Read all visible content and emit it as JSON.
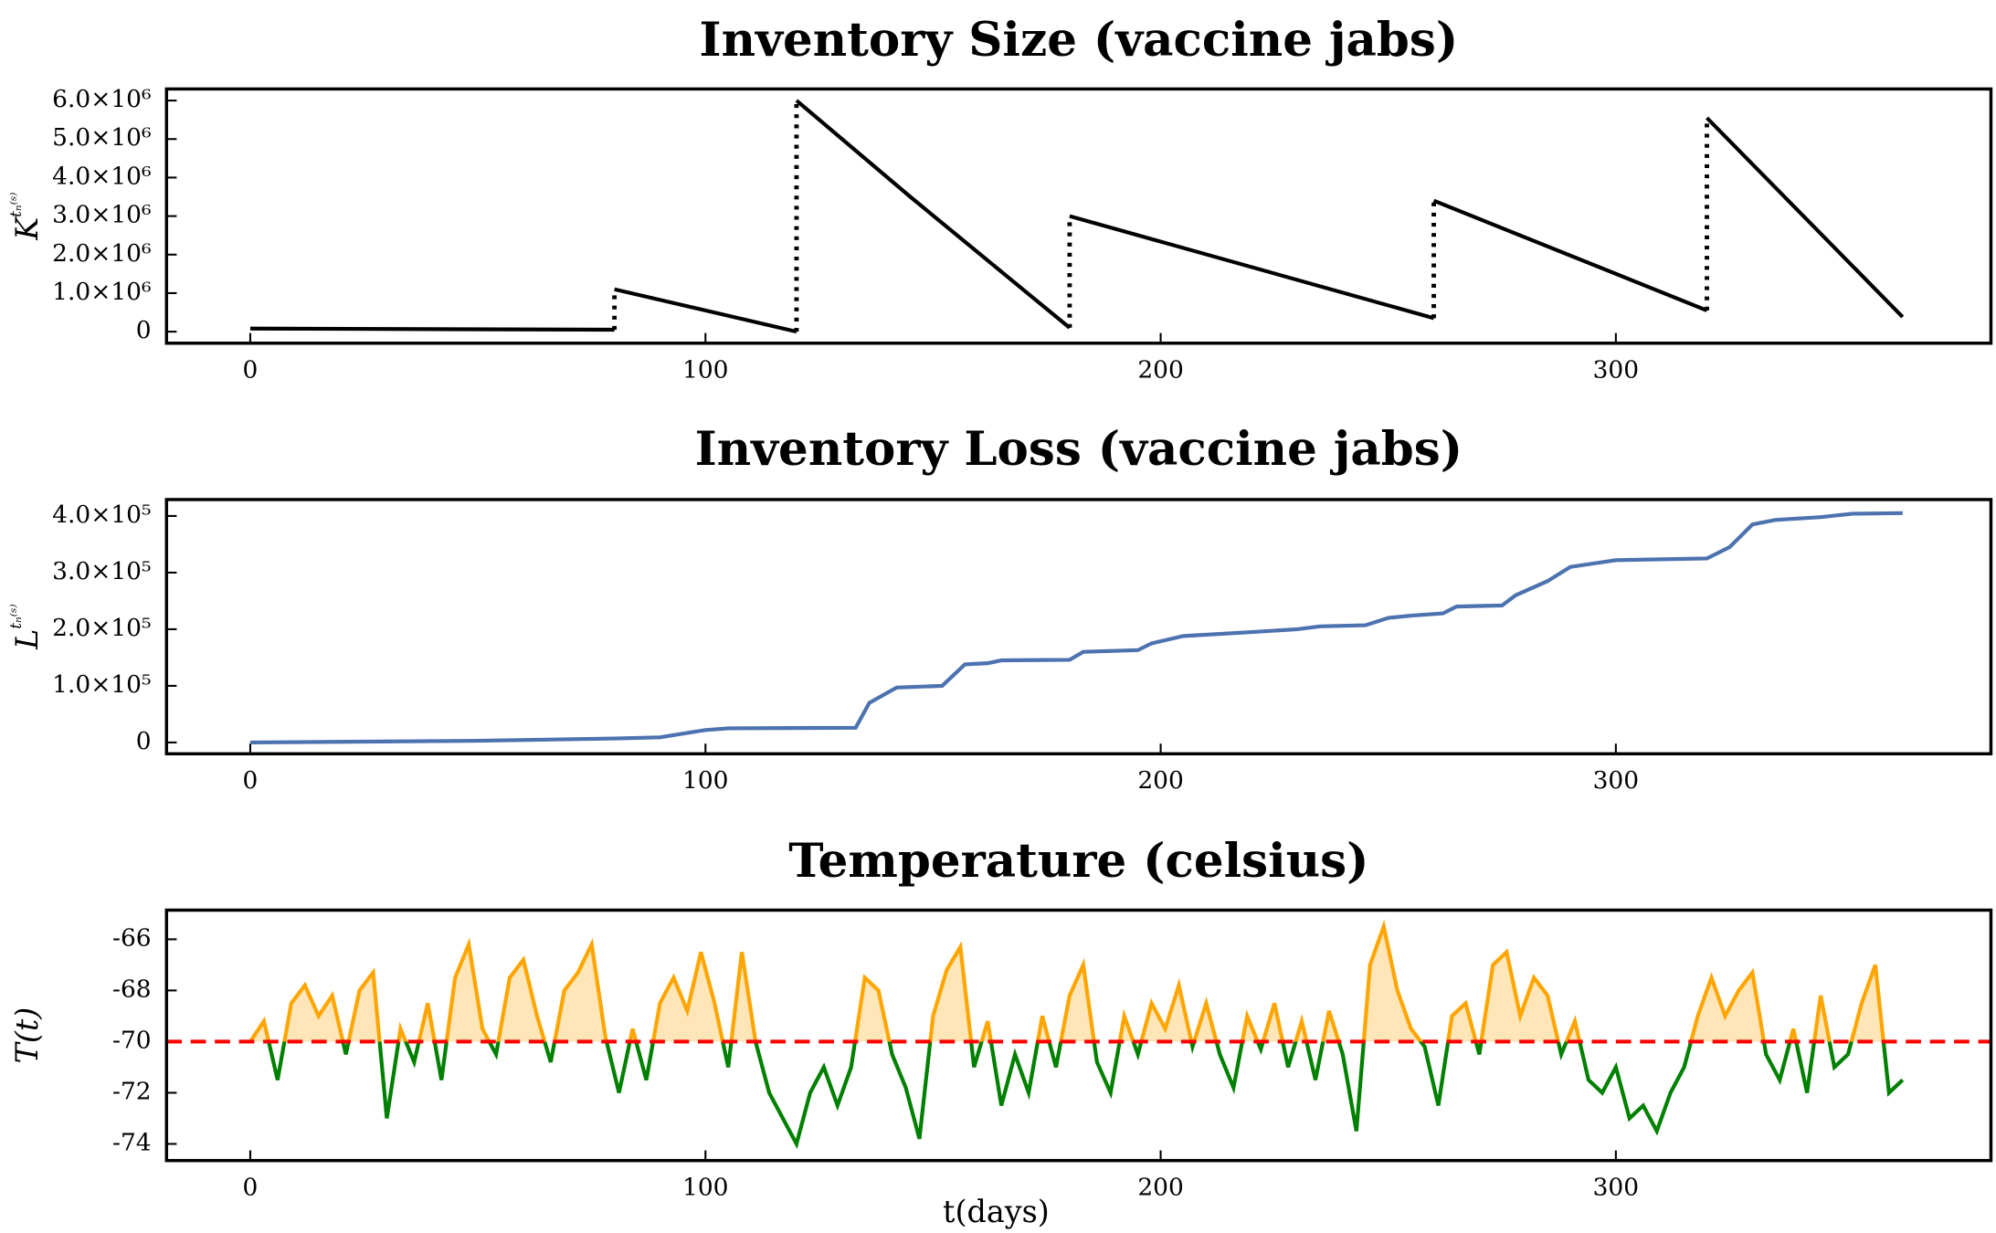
{
  "chart_data": [
    {
      "type": "line",
      "title": "Inventory Size (vaccine jabs)",
      "ylabel": {
        "base": "K",
        "sup": "tₙ⁽ˢ⁾"
      },
      "color": "#000000",
      "x": [
        0,
        80,
        80,
        120,
        120,
        145,
        180,
        180,
        260,
        260,
        320,
        320,
        363
      ],
      "values": [
        80000,
        50000,
        1100000,
        0,
        6000000,
        3500000,
        100000,
        3000000,
        350000,
        3400000,
        550000,
        5550000,
        380000
      ],
      "xlim": [
        -18.4,
        382.4
      ],
      "xticks": [
        0,
        100,
        200,
        300
      ],
      "ylim": [
        -300000,
        6300000
      ],
      "yticks": [
        0,
        {
          "value": 1000000,
          "label": "1.0×10⁶"
        },
        {
          "value": 2000000,
          "label": "2.0×10⁶"
        },
        {
          "value": 3000000,
          "label": "3.0×10⁶"
        },
        {
          "value": 4000000,
          "label": "4.0×10⁶"
        },
        {
          "value": 5000000,
          "label": "5.0×10⁶"
        },
        {
          "value": 6000000,
          "label": "6.0×10⁶"
        }
      ]
    },
    {
      "type": "line",
      "title": "Inventory Loss (vaccine jabs)",
      "ylabel": {
        "base": "L",
        "sup": "tₙ⁽ˢ⁾"
      },
      "color": "#4c72b0",
      "x": [
        0,
        50,
        80,
        90,
        100,
        105,
        133,
        136,
        142,
        152,
        157,
        162,
        165,
        180,
        183,
        195,
        198,
        205,
        220,
        230,
        235,
        245,
        250,
        255,
        262,
        265,
        275,
        278,
        285,
        290,
        300,
        320,
        325,
        330,
        335,
        345,
        352,
        363
      ],
      "values": [
        0,
        3000,
        7000,
        9000,
        22000,
        25000,
        26000,
        70000,
        97000,
        100000,
        138000,
        140000,
        145000,
        146000,
        160000,
        163000,
        175000,
        188000,
        195000,
        200000,
        205000,
        207000,
        220000,
        224000,
        228000,
        240000,
        242000,
        260000,
        285000,
        310000,
        322000,
        325000,
        345000,
        385000,
        393000,
        398000,
        404000,
        405000
      ],
      "xlim": [
        -18.4,
        382.4
      ],
      "xticks": [
        0,
        100,
        200,
        300
      ],
      "ylim": [
        -20000,
        429000
      ],
      "yticks": [
        0,
        {
          "value": 100000,
          "label": "1.0×10⁵"
        },
        {
          "value": 200000,
          "label": "2.0×10⁵"
        },
        {
          "value": 300000,
          "label": "3.0×10⁵"
        },
        {
          "value": 400000,
          "label": "4.0×10⁵"
        }
      ]
    },
    {
      "type": "line",
      "title": "Temperature (celsius)",
      "ylabel": {
        "base": "T(t)"
      },
      "xlabel": "t(days)",
      "threshold": -70,
      "threshold_color": "#ff0000",
      "above_color": "#ffa500",
      "below_color": "#008000",
      "fill_color": "#ffe6b8",
      "x": [
        0,
        3,
        6,
        9,
        12,
        15,
        18,
        21,
        24,
        27,
        30,
        33,
        36,
        39,
        42,
        45,
        48,
        51,
        54,
        57,
        60,
        63,
        66,
        69,
        72,
        75,
        78,
        81,
        84,
        87,
        90,
        93,
        96,
        99,
        102,
        105,
        108,
        111,
        114,
        117,
        120,
        123,
        126,
        129,
        132,
        135,
        138,
        141,
        144,
        147,
        150,
        153,
        156,
        159,
        162,
        165,
        168,
        171,
        174,
        177,
        180,
        183,
        186,
        189,
        192,
        195,
        198,
        201,
        204,
        207,
        210,
        213,
        216,
        219,
        222,
        225,
        228,
        231,
        234,
        237,
        240,
        243,
        246,
        249,
        252,
        255,
        258,
        261,
        264,
        267,
        270,
        273,
        276,
        279,
        282,
        285,
        288,
        291,
        294,
        297,
        300,
        303,
        306,
        309,
        312,
        315,
        318,
        321,
        324,
        327,
        330,
        333,
        336,
        339,
        342,
        345,
        348,
        351,
        354,
        357,
        360,
        363
      ],
      "values": [
        -70,
        -69.2,
        -71.5,
        -68.5,
        -67.8,
        -69,
        -68.2,
        -70.5,
        -68,
        -67.3,
        -73,
        -69.5,
        -70.8,
        -68.5,
        -71.5,
        -67.5,
        -66.2,
        -69.5,
        -70.5,
        -67.5,
        -66.8,
        -69,
        -70.8,
        -68,
        -67.3,
        -66.2,
        -69.8,
        -72,
        -69.5,
        -71.5,
        -68.5,
        -67.5,
        -68.8,
        -66.5,
        -68.5,
        -71,
        -66.5,
        -70,
        -72,
        -73,
        -74,
        -72,
        -71,
        -72.5,
        -71,
        -67.5,
        -68,
        -70.5,
        -71.8,
        -73.8,
        -69,
        -67.2,
        -66.3,
        -71,
        -69.2,
        -72.5,
        -70.5,
        -72,
        -69,
        -71,
        -68.2,
        -67,
        -70.8,
        -72,
        -69,
        -70.5,
        -68.5,
        -69.5,
        -67.8,
        -70.2,
        -68.5,
        -70.5,
        -71.8,
        -69,
        -70.3,
        -68.5,
        -71,
        -69.2,
        -71.5,
        -68.8,
        -70.5,
        -73.5,
        -67,
        -65.5,
        -68,
        -69.5,
        -70.2,
        -72.5,
        -69,
        -68.5,
        -70.5,
        -67,
        -66.5,
        -69,
        -67.5,
        -68.2,
        -70.5,
        -69.2,
        -71.5,
        -72,
        -71,
        -73,
        -72.5,
        -73.5,
        -72,
        -71,
        -69,
        -67.5,
        -69,
        -68,
        -67.3,
        -70.5,
        -71.5,
        -69.5,
        -72,
        -68.2,
        -71,
        -70.5,
        -68.5,
        -67,
        -72,
        -71.5
      ],
      "xlim": [
        -18.4,
        382.4
      ],
      "xticks": [
        0,
        100,
        200,
        300
      ],
      "ylim": [
        -74.65,
        -64.86
      ],
      "yticks": [
        -74,
        -72,
        -70,
        -68,
        -66
      ]
    }
  ]
}
